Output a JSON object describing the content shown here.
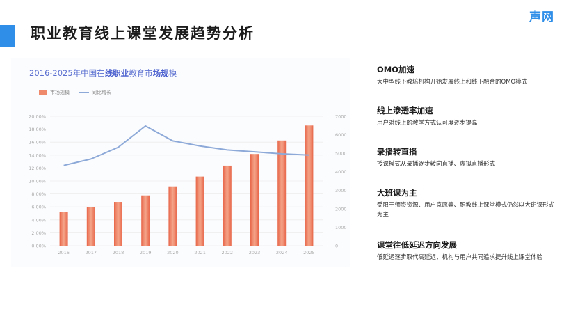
{
  "header": {
    "title": "职业教育线上课堂发展趋势分析"
  },
  "brand": {
    "name": "声网"
  },
  "chart_title_parts": [
    "2016-2025年中国在",
    "线职业",
    "教育市",
    "场规",
    "模"
  ],
  "chart_data": {
    "type": "bar+line",
    "title": "2016-2025年中国在线职业教育市场规模",
    "categories": [
      "2016",
      "2017",
      "2018",
      "2019",
      "2020",
      "2021",
      "2022",
      "2023",
      "2024",
      "2025"
    ],
    "series": [
      {
        "name": "市场规模",
        "type": "bar",
        "axis": "right",
        "color": "#f08a6c",
        "values": [
          1820,
          2080,
          2370,
          2720,
          3210,
          3740,
          4330,
          4960,
          5690,
          6500
        ]
      },
      {
        "name": "同比增长",
        "type": "line",
        "axis": "left",
        "color": "#8da9d8",
        "values": [
          0.124,
          0.134,
          0.152,
          0.185,
          0.162,
          0.154,
          0.148,
          0.145,
          0.142,
          0.14
        ]
      }
    ],
    "y_left": {
      "min": 0,
      "max": 0.2,
      "ticks": [
        "0.00%",
        "2.00%",
        "4.00%",
        "6.00%",
        "8.00%",
        "10.00%",
        "12.00%",
        "14.00%",
        "16.00%",
        "18.00%",
        "20.00%"
      ]
    },
    "y_right": {
      "min": 0,
      "max": 7000,
      "ticks": [
        "0",
        "1000",
        "2000",
        "3000",
        "4000",
        "5000",
        "6000",
        "7000"
      ]
    },
    "legend": "top-left",
    "grid": true
  },
  "points": [
    {
      "title": "OMO加速",
      "desc": "大中型线下教培机构开始发展线上和线下融合的OMO模式"
    },
    {
      "title": "线上渗透率加速",
      "desc": "用户对线上的教学方式认可度逐步提高"
    },
    {
      "title": "录播转直播",
      "desc": "授课模式从录播逐步转向直播、虚拟直播形式"
    },
    {
      "title": "大班课为主",
      "desc": "受限于师资资源、用户意愿等、职教线上课堂模式仍然以大班课形式为主"
    },
    {
      "title": "课堂往低延迟方向发展",
      "desc": "低延迟逐步取代高延迟，机构与用户共同追求提升线上课堂体验"
    }
  ]
}
